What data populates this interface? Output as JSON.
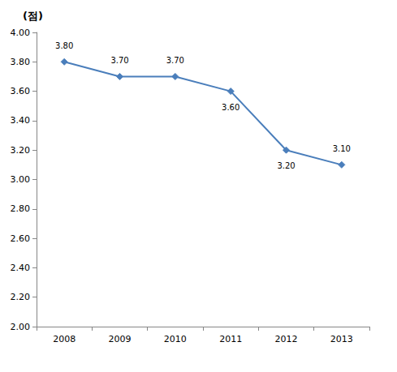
{
  "chart_data": {
    "type": "line",
    "y_label": "(점)",
    "categories": [
      "2008",
      "2009",
      "2010",
      "2011",
      "2012",
      "2013"
    ],
    "values": [
      3.8,
      3.7,
      3.7,
      3.6,
      3.2,
      3.1
    ],
    "value_labels": [
      "3.80",
      "3.70",
      "3.70",
      "3.60",
      "3.20",
      "3.10"
    ],
    "color": "#4a7ebb",
    "marker": "diamond",
    "ylim": [
      2,
      4
    ],
    "yticks": [
      {
        "value": 2,
        "label": "2.00"
      },
      {
        "value": 2.2,
        "label": "2.20"
      },
      {
        "value": 2.4,
        "label": "2.40"
      },
      {
        "value": 2.6,
        "label": "2.60"
      },
      {
        "value": 2.8,
        "label": "2.80"
      },
      {
        "value": 3,
        "label": "3.00"
      },
      {
        "value": 3.2,
        "label": "3.20"
      },
      {
        "value": 3.4,
        "label": "3.40"
      },
      {
        "value": 3.6,
        "label": "3.60"
      },
      {
        "value": 3.8,
        "label": "3.80"
      },
      {
        "value": 4,
        "label": "4.00"
      }
    ],
    "grid": false,
    "data_labels": true
  }
}
